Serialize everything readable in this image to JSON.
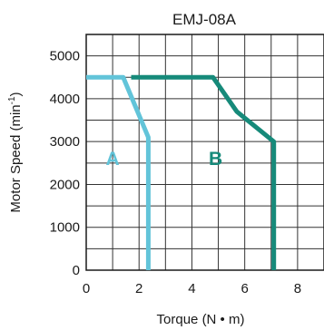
{
  "chart_data": {
    "type": "line",
    "title": "EMJ-08A",
    "xlabel": "Torque (N • m)",
    "ylabel": "Motor  Speed (min-1)",
    "ylabel_main": "Motor  Speed (min",
    "ylabel_sup": "-1",
    "ylabel_close": ")",
    "xlim": [
      0,
      9
    ],
    "ylim": [
      0,
      5500
    ],
    "x_ticks": [
      0,
      2,
      4,
      6,
      8
    ],
    "y_ticks": [
      0,
      1000,
      2000,
      3000,
      4000,
      5000
    ],
    "grid": true,
    "regions": [
      {
        "label": "A",
        "x": 1.0,
        "y": 2500,
        "color": "#62c4d9"
      },
      {
        "label": "B",
        "x": 4.9,
        "y": 2500,
        "color": "#168a7a"
      }
    ],
    "series": [
      {
        "color": "#62c4d9",
        "points": [
          [
            0,
            4500
          ],
          [
            1.4,
            4500
          ],
          [
            2.35,
            3100
          ],
          [
            2.35,
            0
          ]
        ]
      },
      {
        "color": "#168a7a",
        "points": [
          [
            1.7,
            4500
          ],
          [
            4.8,
            4500
          ],
          [
            5.7,
            3700
          ],
          [
            7.1,
            3000
          ],
          [
            7.1,
            0
          ]
        ]
      }
    ]
  }
}
